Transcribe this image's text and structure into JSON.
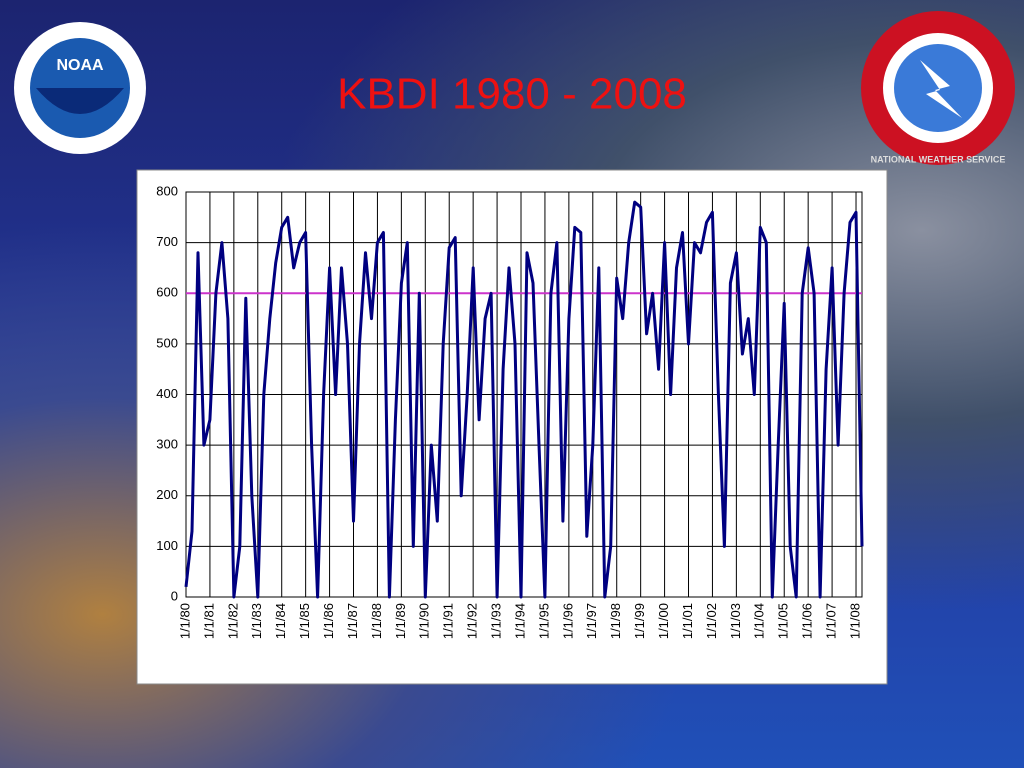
{
  "logos": {
    "left": "NOAA",
    "right": "NATIONAL WEATHER SERVICE"
  },
  "chart_data": {
    "type": "line",
    "title": "KBDI 1980 - 2008",
    "color": "#000080",
    "categories": [
      "1/1/80",
      null,
      null,
      null,
      "1/1/81",
      null,
      null,
      null,
      "1/1/82",
      null,
      null,
      null,
      "1/1/83",
      null,
      null,
      null,
      "1/1/84",
      null,
      null,
      null,
      "1/1/85",
      null,
      null,
      null,
      "1/1/86",
      null,
      null,
      null,
      "1/1/87",
      null,
      null,
      null,
      "1/1/88",
      null,
      null,
      null,
      "1/1/89",
      null,
      null,
      null,
      "1/1/90",
      null,
      null,
      null,
      "1/1/91",
      null,
      null,
      null,
      "1/1/92",
      null,
      null,
      null,
      "1/1/93",
      null,
      null,
      null,
      "1/1/94",
      null,
      null,
      null,
      "1/1/95",
      null,
      null,
      null,
      "1/1/96",
      null,
      null,
      null,
      "1/1/97",
      null,
      null,
      null,
      "1/1/98",
      null,
      null,
      null,
      "1/1/99",
      null,
      null,
      null,
      "1/1/00",
      null,
      null,
      null,
      "1/1/01",
      null,
      null,
      null,
      "1/1/02",
      null,
      null,
      null,
      "1/1/03",
      null,
      null,
      null,
      "1/1/04",
      null,
      null,
      null,
      "1/1/05",
      null,
      null,
      null,
      "1/1/06",
      null,
      null,
      null,
      "1/1/07",
      null,
      null,
      null,
      "1/1/08",
      null
    ],
    "values": [
      20,
      130,
      680,
      300,
      350,
      600,
      700,
      550,
      0,
      100,
      590,
      200,
      0,
      400,
      550,
      660,
      730,
      750,
      650,
      700,
      720,
      300,
      0,
      400,
      650,
      400,
      650,
      500,
      150,
      500,
      680,
      550,
      700,
      720,
      0,
      350,
      620,
      700,
      100,
      600,
      0,
      300,
      150,
      500,
      690,
      710,
      200,
      400,
      650,
      350,
      550,
      600,
      0,
      450,
      650,
      500,
      0,
      680,
      620,
      300,
      0,
      600,
      700,
      150,
      550,
      730,
      720,
      120,
      300,
      650,
      0,
      100,
      630,
      550,
      700,
      780,
      770,
      520,
      600,
      450,
      700,
      400,
      650,
      720,
      500,
      700,
      680,
      740,
      760,
      400,
      100,
      620,
      680,
      480,
      550,
      400,
      730,
      700,
      0,
      300,
      580,
      100,
      0,
      600,
      690,
      600,
      0,
      450,
      650,
      300,
      600,
      740,
      760,
      100
    ],
    "ylim": [
      0,
      800
    ],
    "yticks": [
      0,
      100,
      200,
      300,
      400,
      500,
      600,
      700,
      800
    ],
    "grid": true,
    "reference_line": {
      "value": 600,
      "color": "#cc33cc"
    }
  }
}
